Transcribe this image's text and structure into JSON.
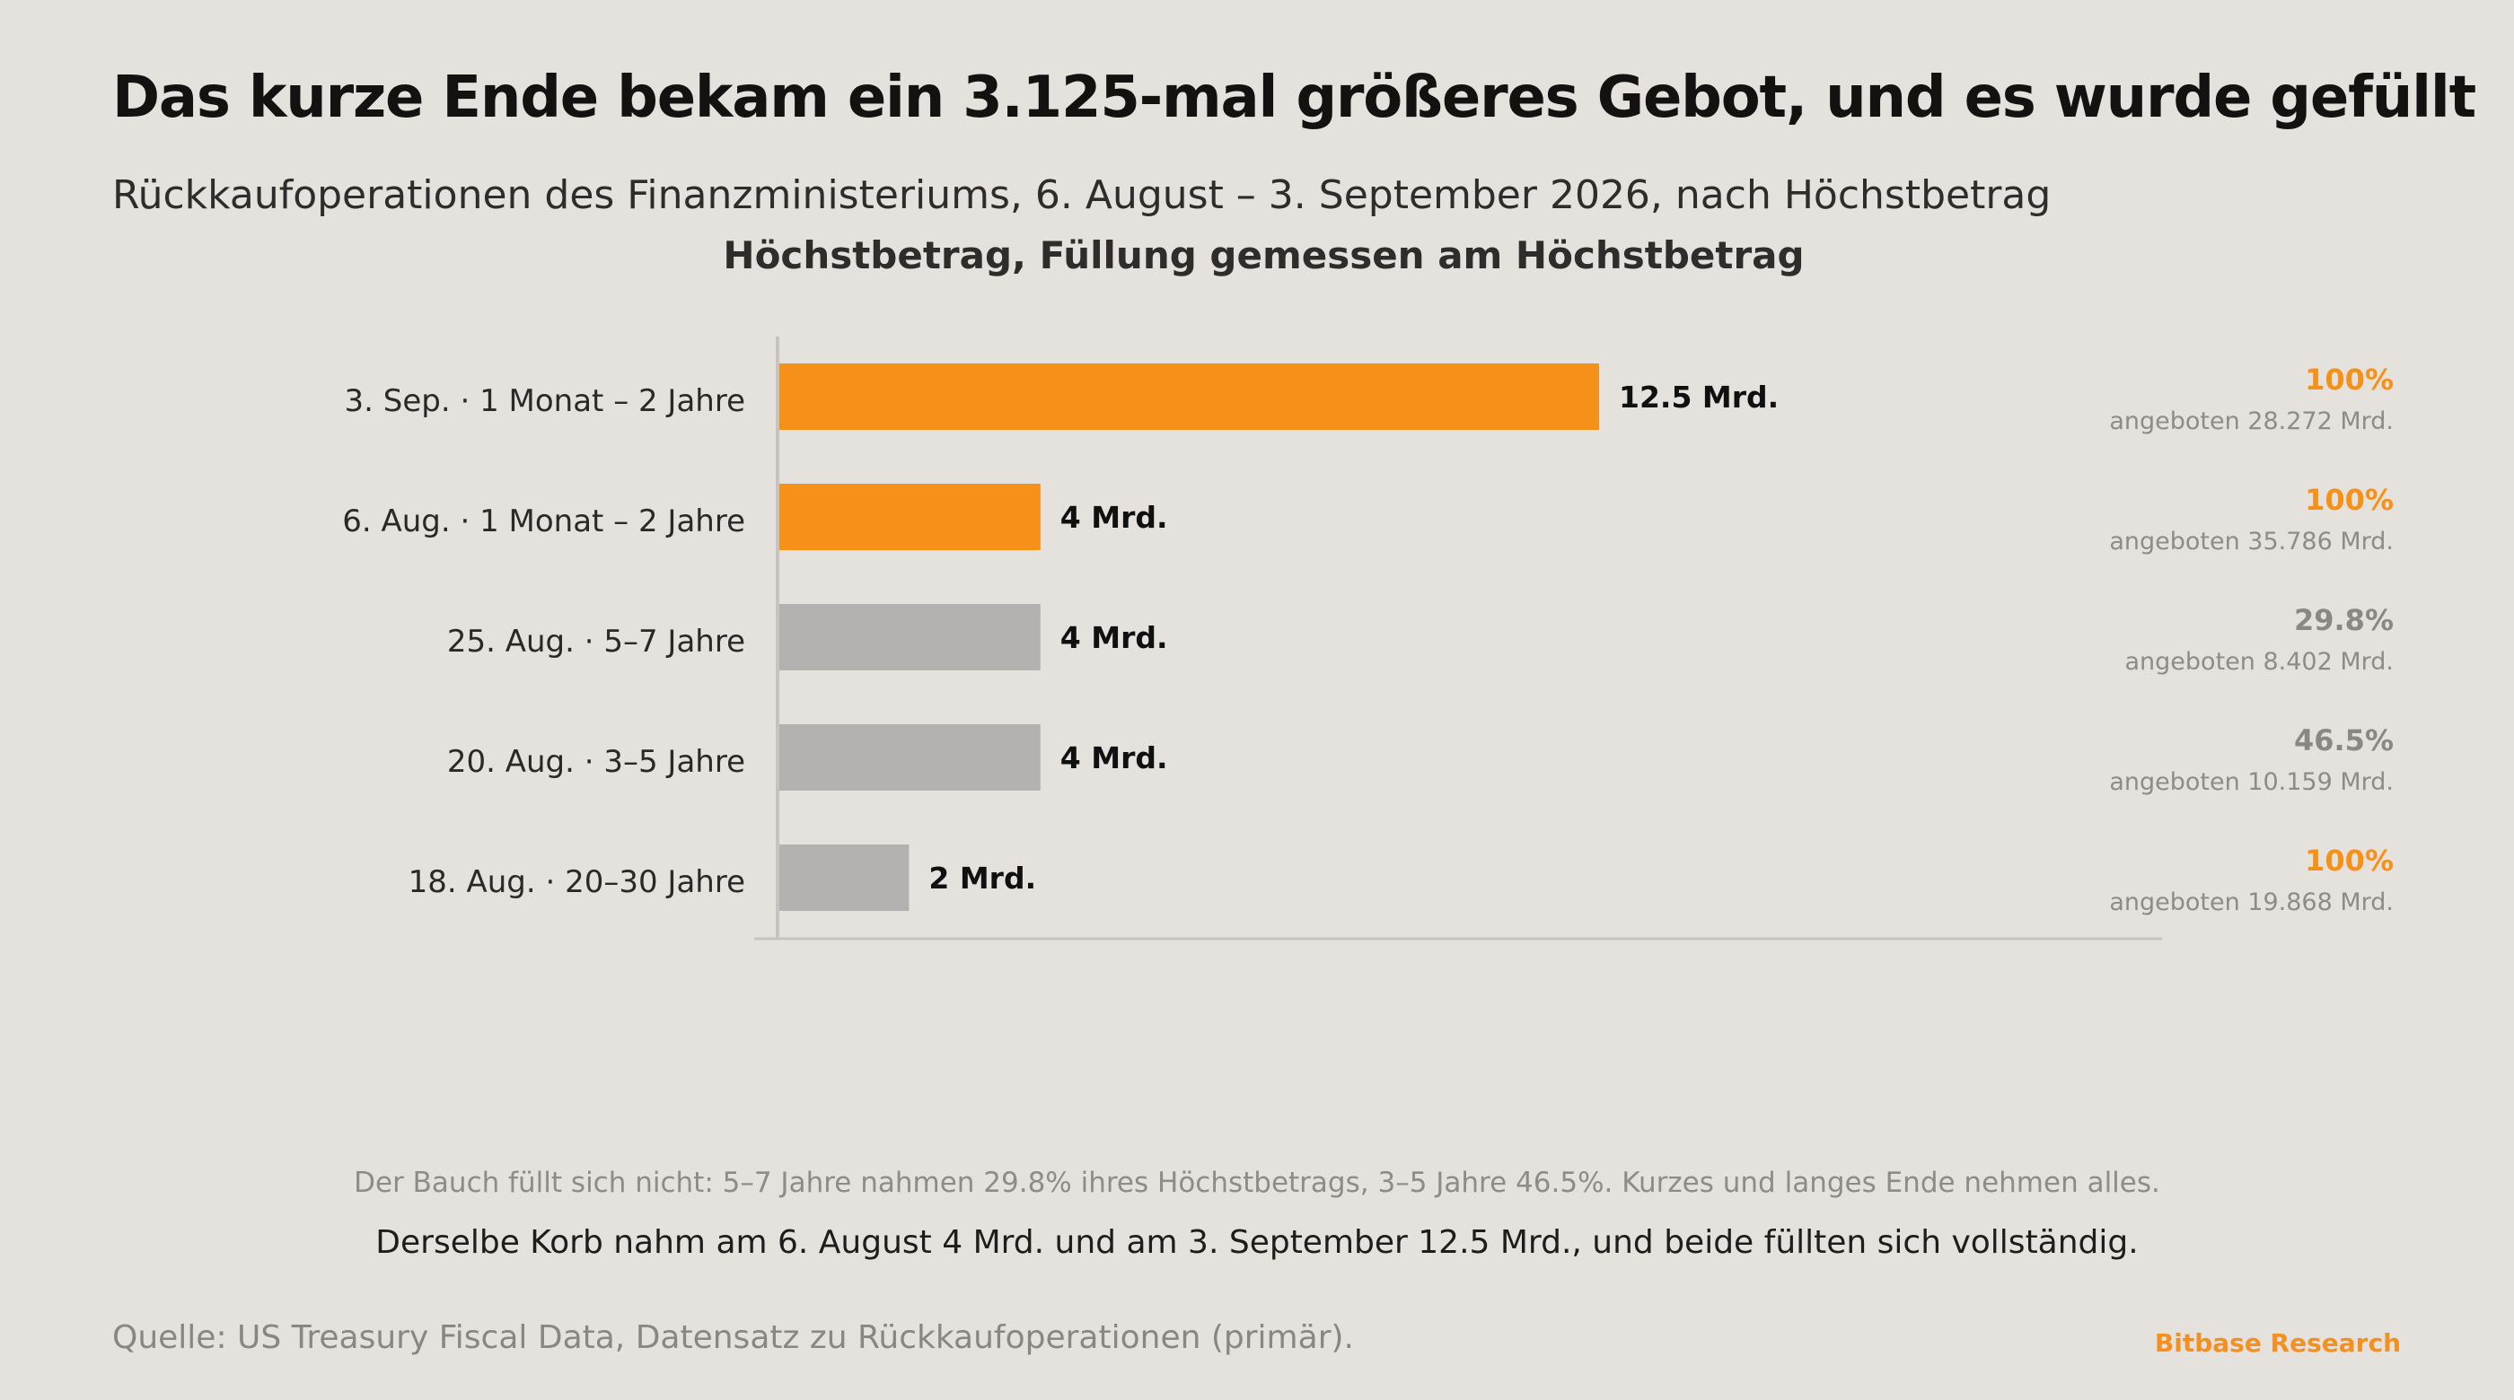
{
  "title": "Das kurze Ende bekam ein 3.125-mal größeres Gebot, und es wurde gefüllt",
  "subtitle": "Rückkaufoperationen des Finanzministeriums, 6. August – 3. September 2026, nach Höchstbetrag",
  "colors": {
    "highlight": "#f59118",
    "muted": "#b3b2b1",
    "axis": "#c7c3bf"
  },
  "chart_data": {
    "type": "bar",
    "orientation": "horizontal",
    "title": "Höchstbetrag, Füllung gemessen am Höchstbetrag",
    "xlim": [
      0,
      21.5
    ],
    "grid": false,
    "categories": [
      "3. Sep. · 1 Monat – 2 Jahre",
      "6. Aug. · 1 Monat – 2 Jahre",
      "25. Aug. · 5–7 Jahre",
      "20. Aug. · 3–5 Jahre",
      "18. Aug. · 20–30 Jahre"
    ],
    "values": [
      12.5,
      4,
      4,
      4,
      2
    ],
    "value_labels": [
      "12.5 Mrd.",
      "4 Mrd.",
      "4 Mrd.",
      "4 Mrd.",
      "2 Mrd."
    ],
    "highlighted": [
      true,
      true,
      false,
      false,
      false
    ],
    "fill_labels": [
      "100%",
      "100%",
      "29.8%",
      "46.5%",
      "100%"
    ],
    "fill_full": [
      true,
      true,
      false,
      false,
      true
    ],
    "offered_labels": [
      "angeboten 28.272 Mrd.",
      "angeboten 35.786 Mrd.",
      "angeboten 8.402 Mrd.",
      "angeboten 10.159 Mrd.",
      "angeboten 19.868 Mrd."
    ]
  },
  "notes": {
    "note1": "Der Bauch füllt sich nicht: 5–7 Jahre nahmen 29.8% ihres Höchstbetrags, 3–5 Jahre 46.5%. Kurzes und langes Ende nehmen alles.",
    "note2": "Derselbe Korb nahm am 6. August 4 Mrd. und am 3. September 12.5 Mrd., und beide füllten sich vollständig."
  },
  "footer": {
    "source": "Quelle: US Treasury Fiscal Data, Datensatz zu Rückkaufoperationen (primär).",
    "brand": "Bitbase Research"
  }
}
